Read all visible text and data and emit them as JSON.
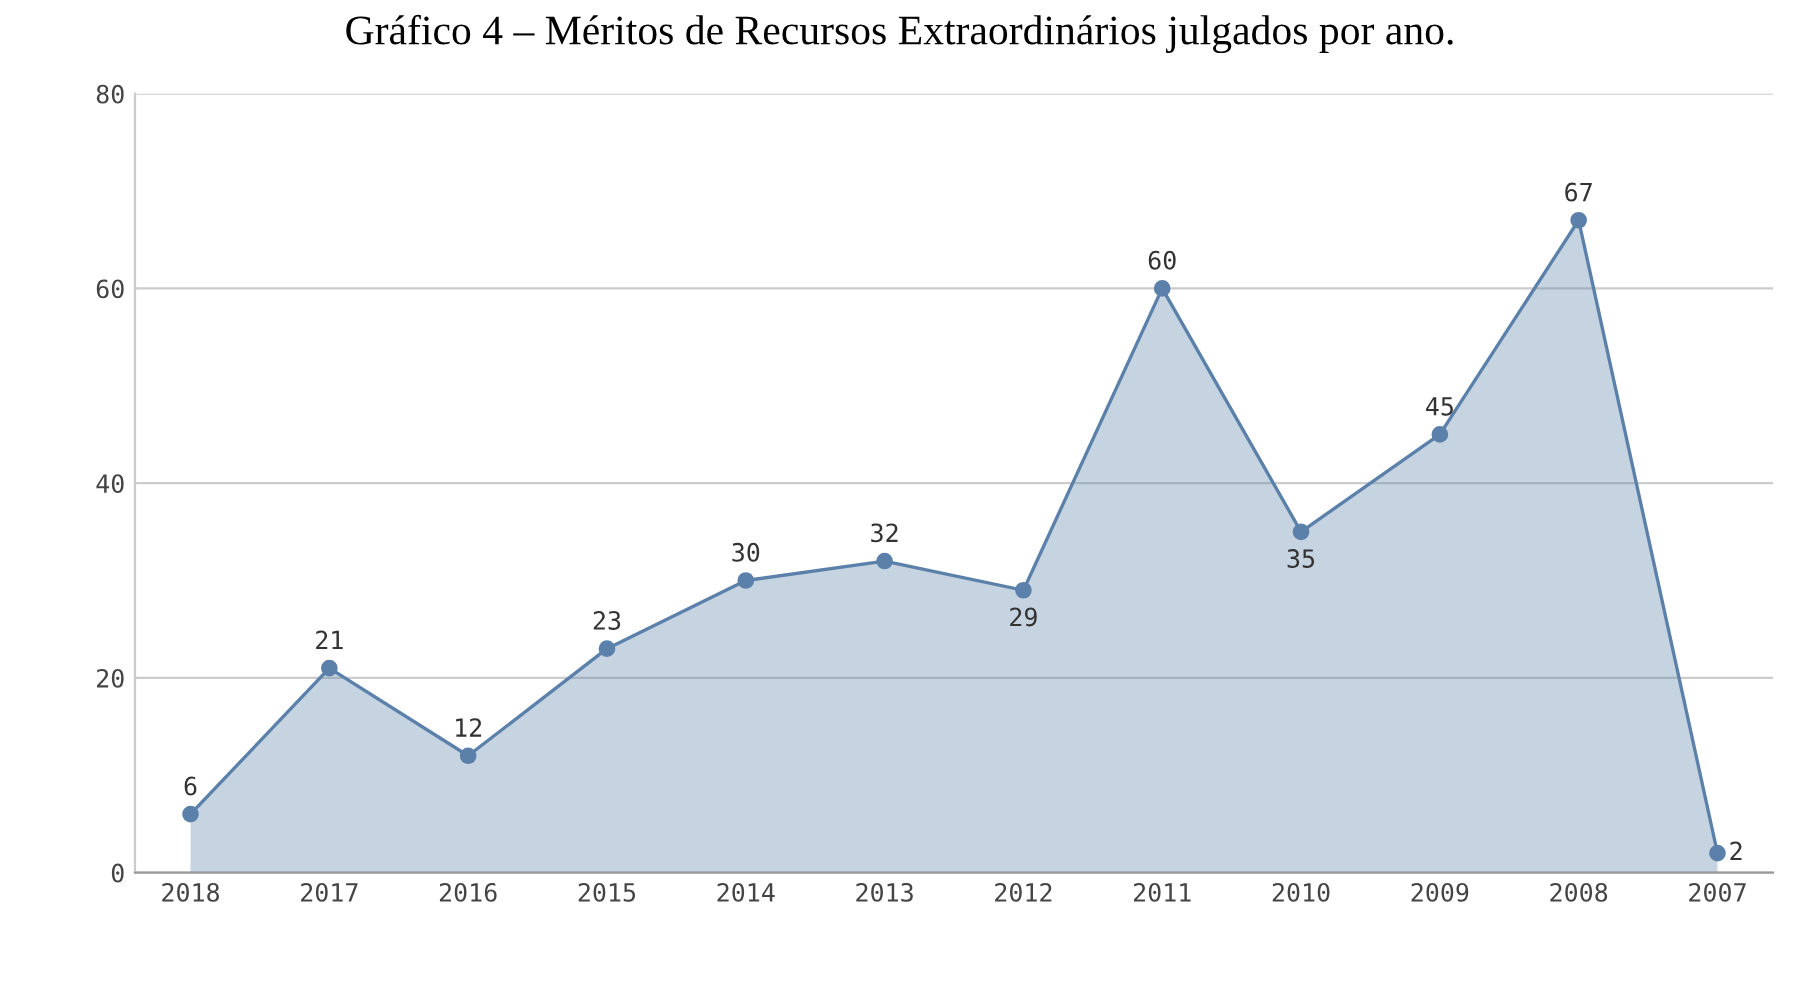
{
  "chart_data": {
    "type": "area",
    "title": "Gráfico 4 – Méritos de Recursos Extraordinários julgados por ano.",
    "categories": [
      "2018",
      "2017",
      "2016",
      "2015",
      "2014",
      "2013",
      "2012",
      "2011",
      "2010",
      "2009",
      "2008",
      "2007"
    ],
    "series": [
      {
        "color": "#5b80aa",
        "values": [
          6,
          21,
          12,
          23,
          30,
          32,
          29,
          60,
          35,
          45,
          67,
          2
        ]
      }
    ],
    "ylim": [
      0,
      80
    ],
    "yticks": [
      0,
      20,
      40,
      60,
      80
    ],
    "grid": "y",
    "marker": "circle",
    "data_labels": true,
    "legend": false
  }
}
